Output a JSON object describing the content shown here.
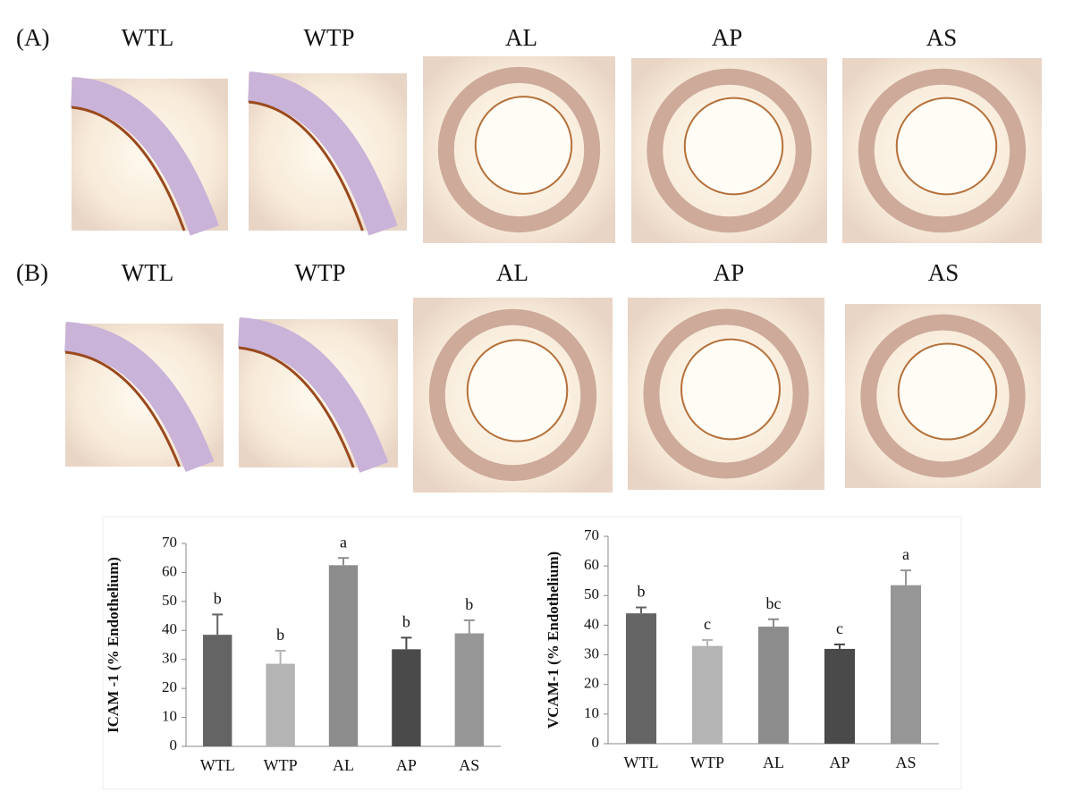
{
  "panels": [
    {
      "label": "(A)",
      "images": [
        "WTL",
        "WTP",
        "AL",
        "AP",
        "AS"
      ]
    },
    {
      "label": "(B)",
      "images": [
        "WTL",
        "WTP",
        "AL",
        "AP",
        "AS"
      ]
    }
  ],
  "chart_data": [
    {
      "type": "bar",
      "y_label": "ICAM -1 (% Endothelium)",
      "categories": [
        "WTL",
        "WTP",
        "AL",
        "AP",
        "AS"
      ],
      "values": [
        38.5,
        28.5,
        62.5,
        33.5,
        39
      ],
      "errors": [
        7,
        4.5,
        2.5,
        4,
        4.5
      ],
      "annotations": [
        "b",
        "b",
        "a",
        "b",
        "b"
      ],
      "colors": [
        "#646464",
        "#b4b4b4",
        "#8c8c8c",
        "#4a4a4a",
        "#969696"
      ],
      "ylim": [
        0,
        70
      ],
      "yticks": [
        0,
        10,
        20,
        30,
        40,
        50,
        60,
        70
      ]
    },
    {
      "type": "bar",
      "y_label": "VCAM-1 (% Endothelium)",
      "categories": [
        "WTL",
        "WTP",
        "AL",
        "AP",
        "AS"
      ],
      "values": [
        44,
        33,
        39.5,
        32,
        53.5
      ],
      "errors": [
        2,
        2,
        2.5,
        1.5,
        5
      ],
      "annotations": [
        "b",
        "c",
        "bc",
        "c",
        "a"
      ],
      "colors": [
        "#646464",
        "#b4b4b4",
        "#8c8c8c",
        "#4a4a4a",
        "#969696"
      ],
      "ylim": [
        0,
        70
      ],
      "yticks": [
        0,
        10,
        20,
        30,
        40,
        50,
        60,
        70
      ]
    }
  ]
}
